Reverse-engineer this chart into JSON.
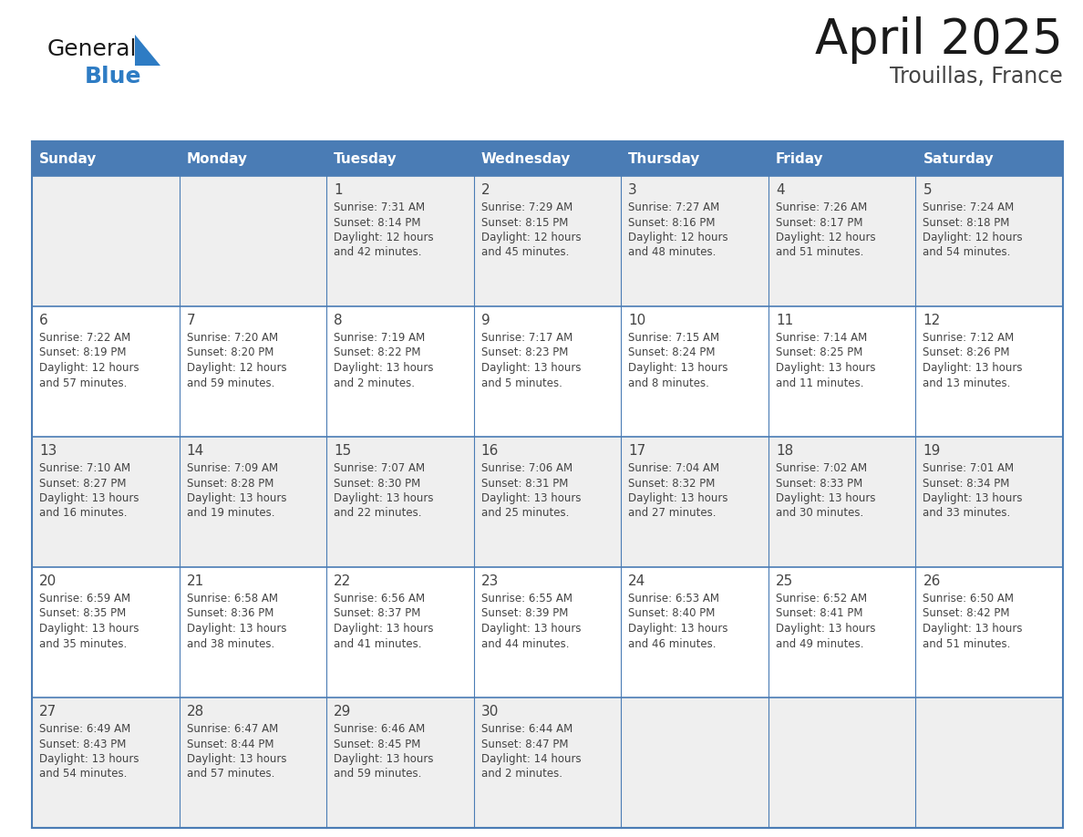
{
  "title": "April 2025",
  "subtitle": "Trouillas, France",
  "days_of_week": [
    "Sunday",
    "Monday",
    "Tuesday",
    "Wednesday",
    "Thursday",
    "Friday",
    "Saturday"
  ],
  "header_bg": "#4a7cb5",
  "header_text": "#ffffff",
  "row_bg_light": "#efefef",
  "row_bg_white": "#ffffff",
  "cell_border": "#4a7cb5",
  "text_color": "#444444",
  "title_color": "#1a1a1a",
  "subtitle_color": "#444444",
  "logo_general_color": "#1a1a1a",
  "logo_blue_color": "#2e7cc4",
  "logo_triangle_color": "#2e7cc4",
  "calendar_data": [
    [
      {
        "day": "",
        "lines": []
      },
      {
        "day": "",
        "lines": []
      },
      {
        "day": "1",
        "lines": [
          "Sunrise: 7:31 AM",
          "Sunset: 8:14 PM",
          "Daylight: 12 hours",
          "and 42 minutes."
        ]
      },
      {
        "day": "2",
        "lines": [
          "Sunrise: 7:29 AM",
          "Sunset: 8:15 PM",
          "Daylight: 12 hours",
          "and 45 minutes."
        ]
      },
      {
        "day": "3",
        "lines": [
          "Sunrise: 7:27 AM",
          "Sunset: 8:16 PM",
          "Daylight: 12 hours",
          "and 48 minutes."
        ]
      },
      {
        "day": "4",
        "lines": [
          "Sunrise: 7:26 AM",
          "Sunset: 8:17 PM",
          "Daylight: 12 hours",
          "and 51 minutes."
        ]
      },
      {
        "day": "5",
        "lines": [
          "Sunrise: 7:24 AM",
          "Sunset: 8:18 PM",
          "Daylight: 12 hours",
          "and 54 minutes."
        ]
      }
    ],
    [
      {
        "day": "6",
        "lines": [
          "Sunrise: 7:22 AM",
          "Sunset: 8:19 PM",
          "Daylight: 12 hours",
          "and 57 minutes."
        ]
      },
      {
        "day": "7",
        "lines": [
          "Sunrise: 7:20 AM",
          "Sunset: 8:20 PM",
          "Daylight: 12 hours",
          "and 59 minutes."
        ]
      },
      {
        "day": "8",
        "lines": [
          "Sunrise: 7:19 AM",
          "Sunset: 8:22 PM",
          "Daylight: 13 hours",
          "and 2 minutes."
        ]
      },
      {
        "day": "9",
        "lines": [
          "Sunrise: 7:17 AM",
          "Sunset: 8:23 PM",
          "Daylight: 13 hours",
          "and 5 minutes."
        ]
      },
      {
        "day": "10",
        "lines": [
          "Sunrise: 7:15 AM",
          "Sunset: 8:24 PM",
          "Daylight: 13 hours",
          "and 8 minutes."
        ]
      },
      {
        "day": "11",
        "lines": [
          "Sunrise: 7:14 AM",
          "Sunset: 8:25 PM",
          "Daylight: 13 hours",
          "and 11 minutes."
        ]
      },
      {
        "day": "12",
        "lines": [
          "Sunrise: 7:12 AM",
          "Sunset: 8:26 PM",
          "Daylight: 13 hours",
          "and 13 minutes."
        ]
      }
    ],
    [
      {
        "day": "13",
        "lines": [
          "Sunrise: 7:10 AM",
          "Sunset: 8:27 PM",
          "Daylight: 13 hours",
          "and 16 minutes."
        ]
      },
      {
        "day": "14",
        "lines": [
          "Sunrise: 7:09 AM",
          "Sunset: 8:28 PM",
          "Daylight: 13 hours",
          "and 19 minutes."
        ]
      },
      {
        "day": "15",
        "lines": [
          "Sunrise: 7:07 AM",
          "Sunset: 8:30 PM",
          "Daylight: 13 hours",
          "and 22 minutes."
        ]
      },
      {
        "day": "16",
        "lines": [
          "Sunrise: 7:06 AM",
          "Sunset: 8:31 PM",
          "Daylight: 13 hours",
          "and 25 minutes."
        ]
      },
      {
        "day": "17",
        "lines": [
          "Sunrise: 7:04 AM",
          "Sunset: 8:32 PM",
          "Daylight: 13 hours",
          "and 27 minutes."
        ]
      },
      {
        "day": "18",
        "lines": [
          "Sunrise: 7:02 AM",
          "Sunset: 8:33 PM",
          "Daylight: 13 hours",
          "and 30 minutes."
        ]
      },
      {
        "day": "19",
        "lines": [
          "Sunrise: 7:01 AM",
          "Sunset: 8:34 PM",
          "Daylight: 13 hours",
          "and 33 minutes."
        ]
      }
    ],
    [
      {
        "day": "20",
        "lines": [
          "Sunrise: 6:59 AM",
          "Sunset: 8:35 PM",
          "Daylight: 13 hours",
          "and 35 minutes."
        ]
      },
      {
        "day": "21",
        "lines": [
          "Sunrise: 6:58 AM",
          "Sunset: 8:36 PM",
          "Daylight: 13 hours",
          "and 38 minutes."
        ]
      },
      {
        "day": "22",
        "lines": [
          "Sunrise: 6:56 AM",
          "Sunset: 8:37 PM",
          "Daylight: 13 hours",
          "and 41 minutes."
        ]
      },
      {
        "day": "23",
        "lines": [
          "Sunrise: 6:55 AM",
          "Sunset: 8:39 PM",
          "Daylight: 13 hours",
          "and 44 minutes."
        ]
      },
      {
        "day": "24",
        "lines": [
          "Sunrise: 6:53 AM",
          "Sunset: 8:40 PM",
          "Daylight: 13 hours",
          "and 46 minutes."
        ]
      },
      {
        "day": "25",
        "lines": [
          "Sunrise: 6:52 AM",
          "Sunset: 8:41 PM",
          "Daylight: 13 hours",
          "and 49 minutes."
        ]
      },
      {
        "day": "26",
        "lines": [
          "Sunrise: 6:50 AM",
          "Sunset: 8:42 PM",
          "Daylight: 13 hours",
          "and 51 minutes."
        ]
      }
    ],
    [
      {
        "day": "27",
        "lines": [
          "Sunrise: 6:49 AM",
          "Sunset: 8:43 PM",
          "Daylight: 13 hours",
          "and 54 minutes."
        ]
      },
      {
        "day": "28",
        "lines": [
          "Sunrise: 6:47 AM",
          "Sunset: 8:44 PM",
          "Daylight: 13 hours",
          "and 57 minutes."
        ]
      },
      {
        "day": "29",
        "lines": [
          "Sunrise: 6:46 AM",
          "Sunset: 8:45 PM",
          "Daylight: 13 hours",
          "and 59 minutes."
        ]
      },
      {
        "day": "30",
        "lines": [
          "Sunrise: 6:44 AM",
          "Sunset: 8:47 PM",
          "Daylight: 14 hours",
          "and 2 minutes."
        ]
      },
      {
        "day": "",
        "lines": []
      },
      {
        "day": "",
        "lines": []
      },
      {
        "day": "",
        "lines": []
      }
    ]
  ]
}
